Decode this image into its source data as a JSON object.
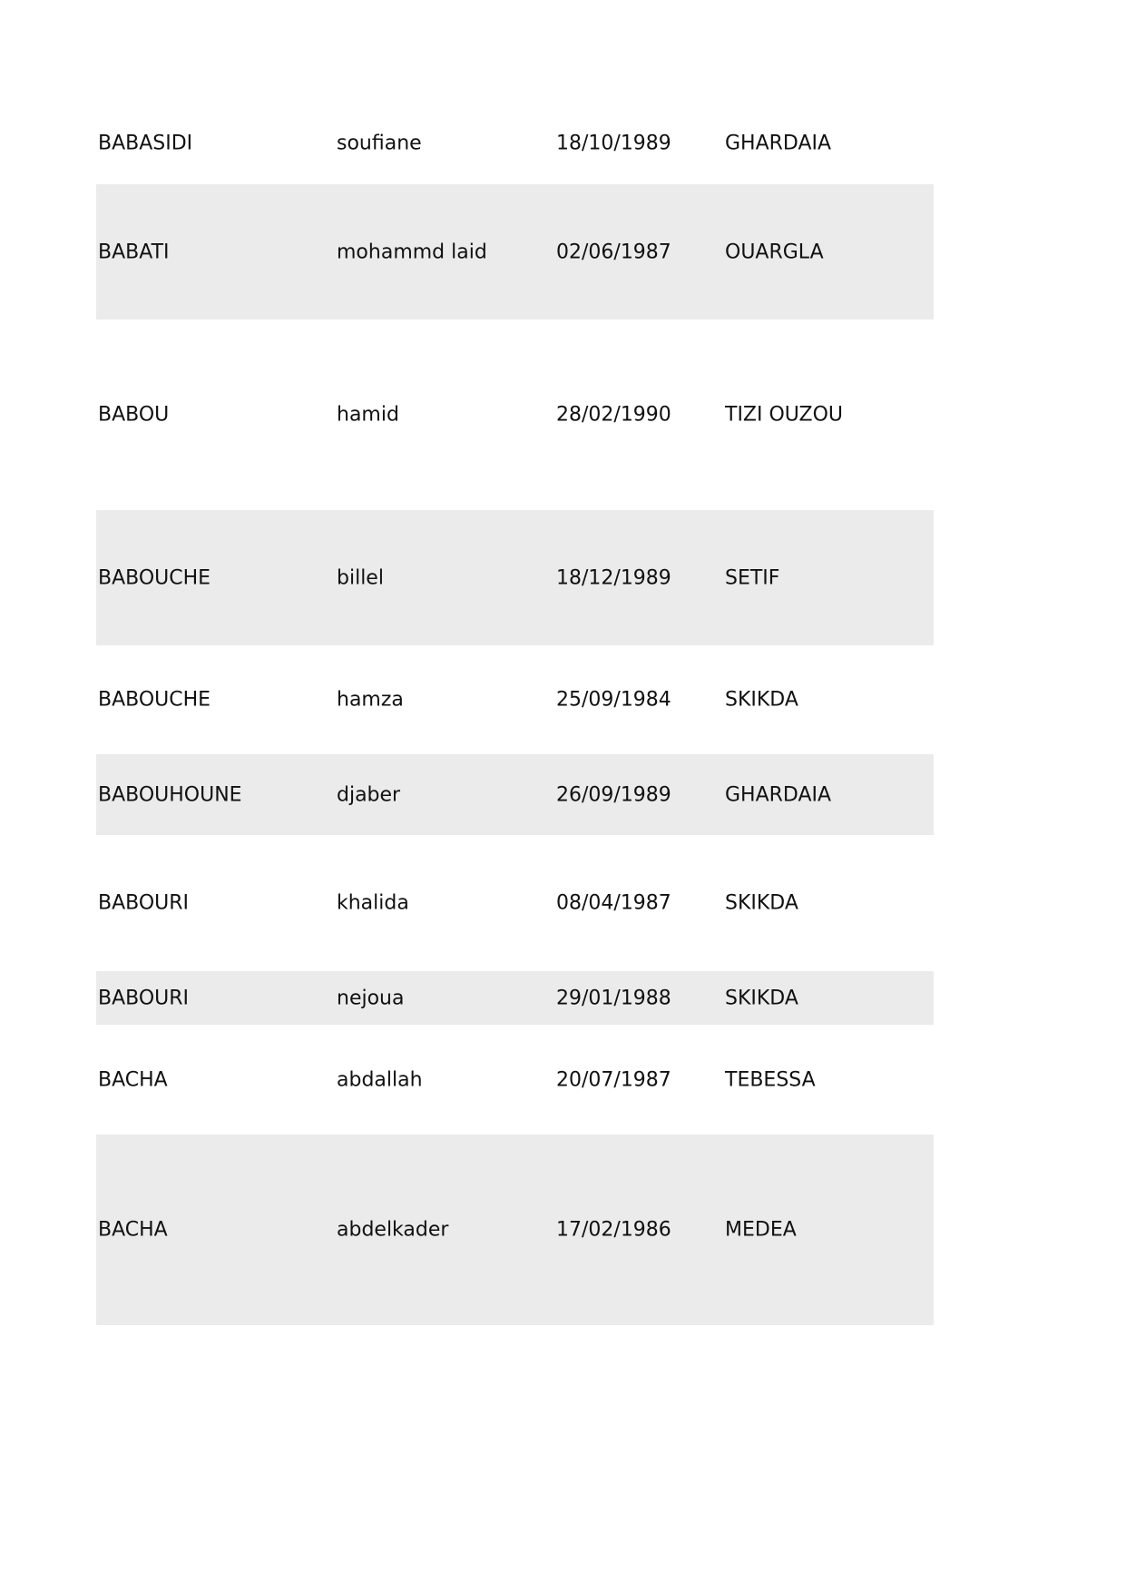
{
  "rows": [
    {
      "last": "BABASIDI",
      "first": "soufiane",
      "dob": "18/10/1989",
      "place": "GHARDAIA"
    },
    {
      "last": "BABATI",
      "first": "mohammd laid",
      "dob": "02/06/1987",
      "place": "OUARGLA"
    },
    {
      "last": "BABOU",
      "first": "hamid",
      "dob": "28/02/1990",
      "place": "TIZI OUZOU"
    },
    {
      "last": "BABOUCHE",
      "first": "billel",
      "dob": "18/12/1989",
      "place": "SETIF"
    },
    {
      "last": "BABOUCHE",
      "first": "hamza",
      "dob": "25/09/1984",
      "place": "SKIKDA"
    },
    {
      "last": "BABOUHOUNE",
      "first": "djaber",
      "dob": "26/09/1989",
      "place": "GHARDAIA"
    },
    {
      "last": "BABOURI",
      "first": "khalida",
      "dob": "08/04/1987",
      "place": "SKIKDA"
    },
    {
      "last": "BABOURI",
      "first": "nejoua",
      "dob": "29/01/1988",
      "place": "SKIKDA"
    },
    {
      "last": "BACHA",
      "first": "abdallah",
      "dob": "20/07/1987",
      "place": "TEBESSA"
    },
    {
      "last": "BACHA",
      "first": "abdelkader",
      "dob": "17/02/1986",
      "place": "MEDEA"
    }
  ],
  "colors": {
    "stripe": "#ebebeb"
  }
}
